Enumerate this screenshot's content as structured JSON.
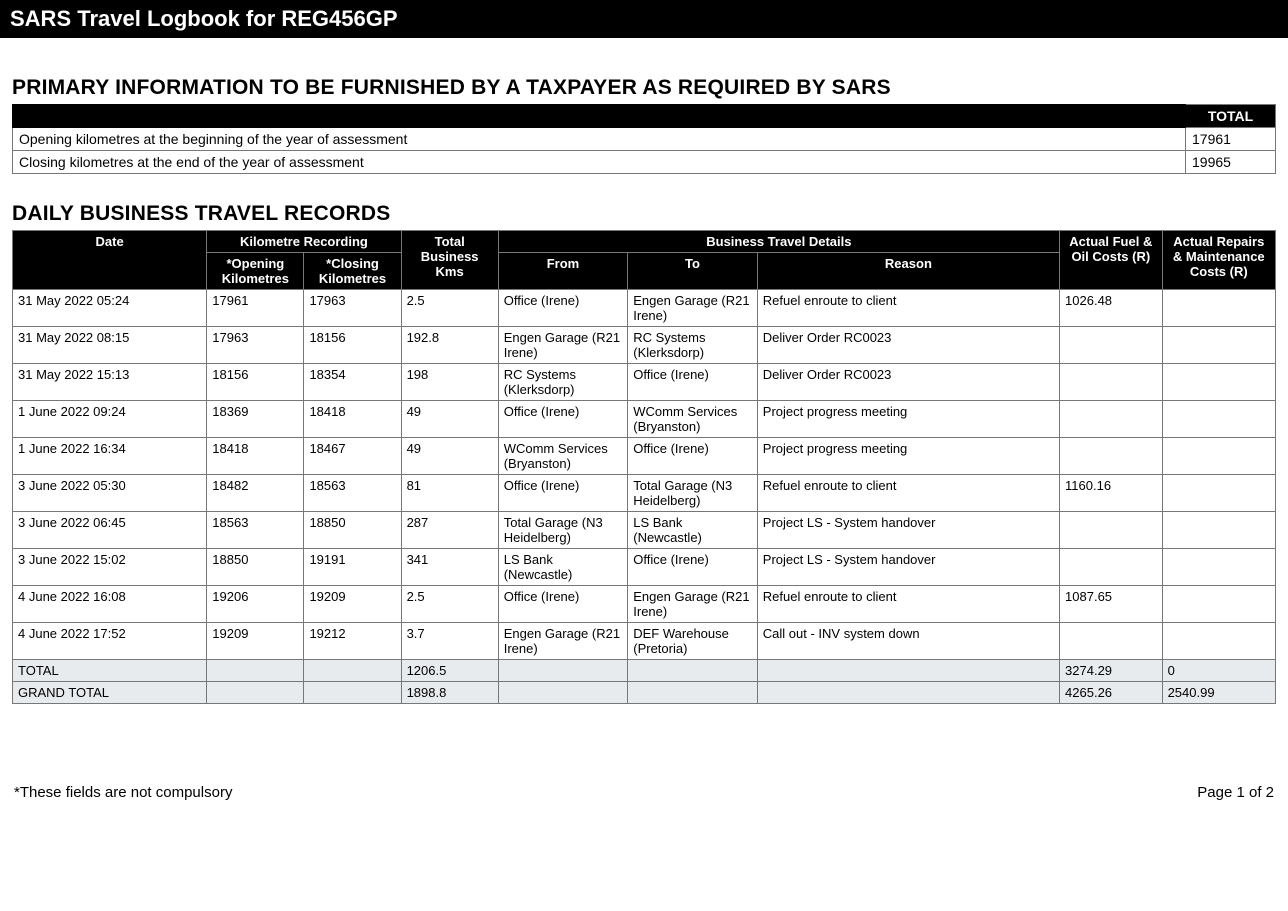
{
  "header": {
    "title": "SARS Travel Logbook for REG456GP"
  },
  "primary": {
    "heading": "PRIMARY INFORMATION TO BE FURNISHED BY A TAXPAYER AS REQUIRED BY SARS",
    "total_label": "TOTAL",
    "rows": [
      {
        "label": "Opening kilometres at the beginning of the year of assessment",
        "value": "17961"
      },
      {
        "label": "Closing kilometres at the end of the year of assessment",
        "value": "19965"
      }
    ]
  },
  "records": {
    "heading": "DAILY BUSINESS TRAVEL RECORDS",
    "columns": {
      "date": "Date",
      "km_recording": "Kilometre Recording",
      "opening_km": "*Opening Kilometres",
      "closing_km": "*Closing Kilometres",
      "total_km": "Total Business Kms",
      "details": "Business Travel Details",
      "from": "From",
      "to": "To",
      "reason": "Reason",
      "fuel": "Actual Fuel & Oil Costs (R)",
      "repairs": "Actual Repairs & Maintenance Costs (R)"
    },
    "rows": [
      {
        "date": "31 May 2022 05:24",
        "open": "17961",
        "close": "17963",
        "total": "2.5",
        "from": "Office (Irene)",
        "to": "Engen Garage (R21 Irene)",
        "reason": "Refuel enroute to client",
        "fuel": "1026.48",
        "repairs": ""
      },
      {
        "date": "31 May 2022 08:15",
        "open": "17963",
        "close": "18156",
        "total": "192.8",
        "from": "Engen Garage (R21 Irene)",
        "to": "RC Systems (Klerksdorp)",
        "reason": "Deliver Order RC0023",
        "fuel": "",
        "repairs": ""
      },
      {
        "date": "31 May 2022 15:13",
        "open": "18156",
        "close": "18354",
        "total": "198",
        "from": "RC Systems (Klerksdorp)",
        "to": "Office (Irene)",
        "reason": "Deliver Order RC0023",
        "fuel": "",
        "repairs": ""
      },
      {
        "date": "1 June 2022 09:24",
        "open": "18369",
        "close": "18418",
        "total": "49",
        "from": "Office (Irene)",
        "to": "WComm Services (Bryanston)",
        "reason": "Project progress meeting",
        "fuel": "",
        "repairs": ""
      },
      {
        "date": "1 June 2022 16:34",
        "open": "18418",
        "close": "18467",
        "total": "49",
        "from": "WComm Services (Bryanston)",
        "to": "Office (Irene)",
        "reason": "Project progress meeting",
        "fuel": "",
        "repairs": ""
      },
      {
        "date": "3 June 2022 05:30",
        "open": "18482",
        "close": "18563",
        "total": "81",
        "from": "Office (Irene)",
        "to": "Total Garage (N3 Heidelberg)",
        "reason": "Refuel enroute to client",
        "fuel": "1160.16",
        "repairs": ""
      },
      {
        "date": "3 June 2022 06:45",
        "open": "18563",
        "close": "18850",
        "total": "287",
        "from": "Total Garage (N3 Heidelberg)",
        "to": "LS Bank (Newcastle)",
        "reason": "Project LS - System handover",
        "fuel": "",
        "repairs": ""
      },
      {
        "date": "3 June 2022 15:02",
        "open": "18850",
        "close": "19191",
        "total": "341",
        "from": "LS Bank (Newcastle)",
        "to": "Office (Irene)",
        "reason": "Project LS - System handover",
        "fuel": "",
        "repairs": ""
      },
      {
        "date": "4 June 2022 16:08",
        "open": "19206",
        "close": "19209",
        "total": "2.5",
        "from": "Office (Irene)",
        "to": "Engen Garage (R21 Irene)",
        "reason": "Refuel enroute to client",
        "fuel": "1087.65",
        "repairs": ""
      },
      {
        "date": "4 June 2022 17:52",
        "open": "19209",
        "close": "19212",
        "total": "3.7",
        "from": "Engen Garage (R21 Irene)",
        "to": "DEF Warehouse (Pretoria)",
        "reason": "Call out - INV system down",
        "fuel": "",
        "repairs": ""
      }
    ],
    "totals": [
      {
        "label": "TOTAL",
        "total_km": "1206.5",
        "fuel": "3274.29",
        "repairs": "0"
      },
      {
        "label": "GRAND TOTAL",
        "total_km": "1898.8",
        "fuel": "4265.26",
        "repairs": "2540.99"
      }
    ]
  },
  "footer": {
    "note": "*These fields are not compulsory",
    "page": "Page 1 of 2"
  }
}
